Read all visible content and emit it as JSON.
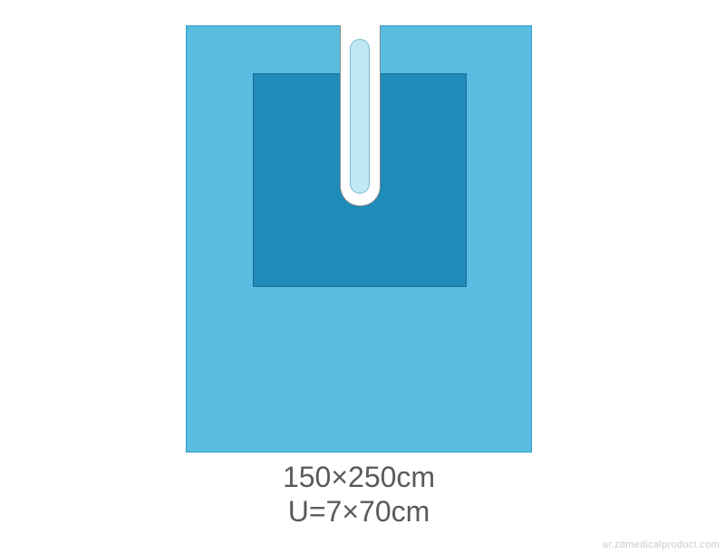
{
  "diagram": {
    "type": "infographic",
    "product": "surgical-u-drape",
    "outer_drape": {
      "color": "#58bde0",
      "border_color": "#2e9fc7",
      "border_width": 1,
      "width_cm": 150,
      "height_cm": 250
    },
    "reinforced_zone": {
      "color": "#1f8bb8",
      "border_color": "#186f94",
      "border_width": 1
    },
    "u_slot": {
      "outer_color": "#ffffff",
      "outer_border": "#888888",
      "inner_color": "#bfe8f3",
      "inner_border": "#7fb8cc",
      "width_cm": 7,
      "length_cm": 70
    },
    "labels": {
      "line1": "150×250cm",
      "line2": "U=7×70cm",
      "font_size": 32,
      "color": "#5a5a5a"
    },
    "background_color": "#ffffff"
  },
  "watermark": {
    "text": "ar.zdmedicalproduct.com",
    "color": "rgba(160,160,160,0.55)",
    "font_size": 11
  }
}
